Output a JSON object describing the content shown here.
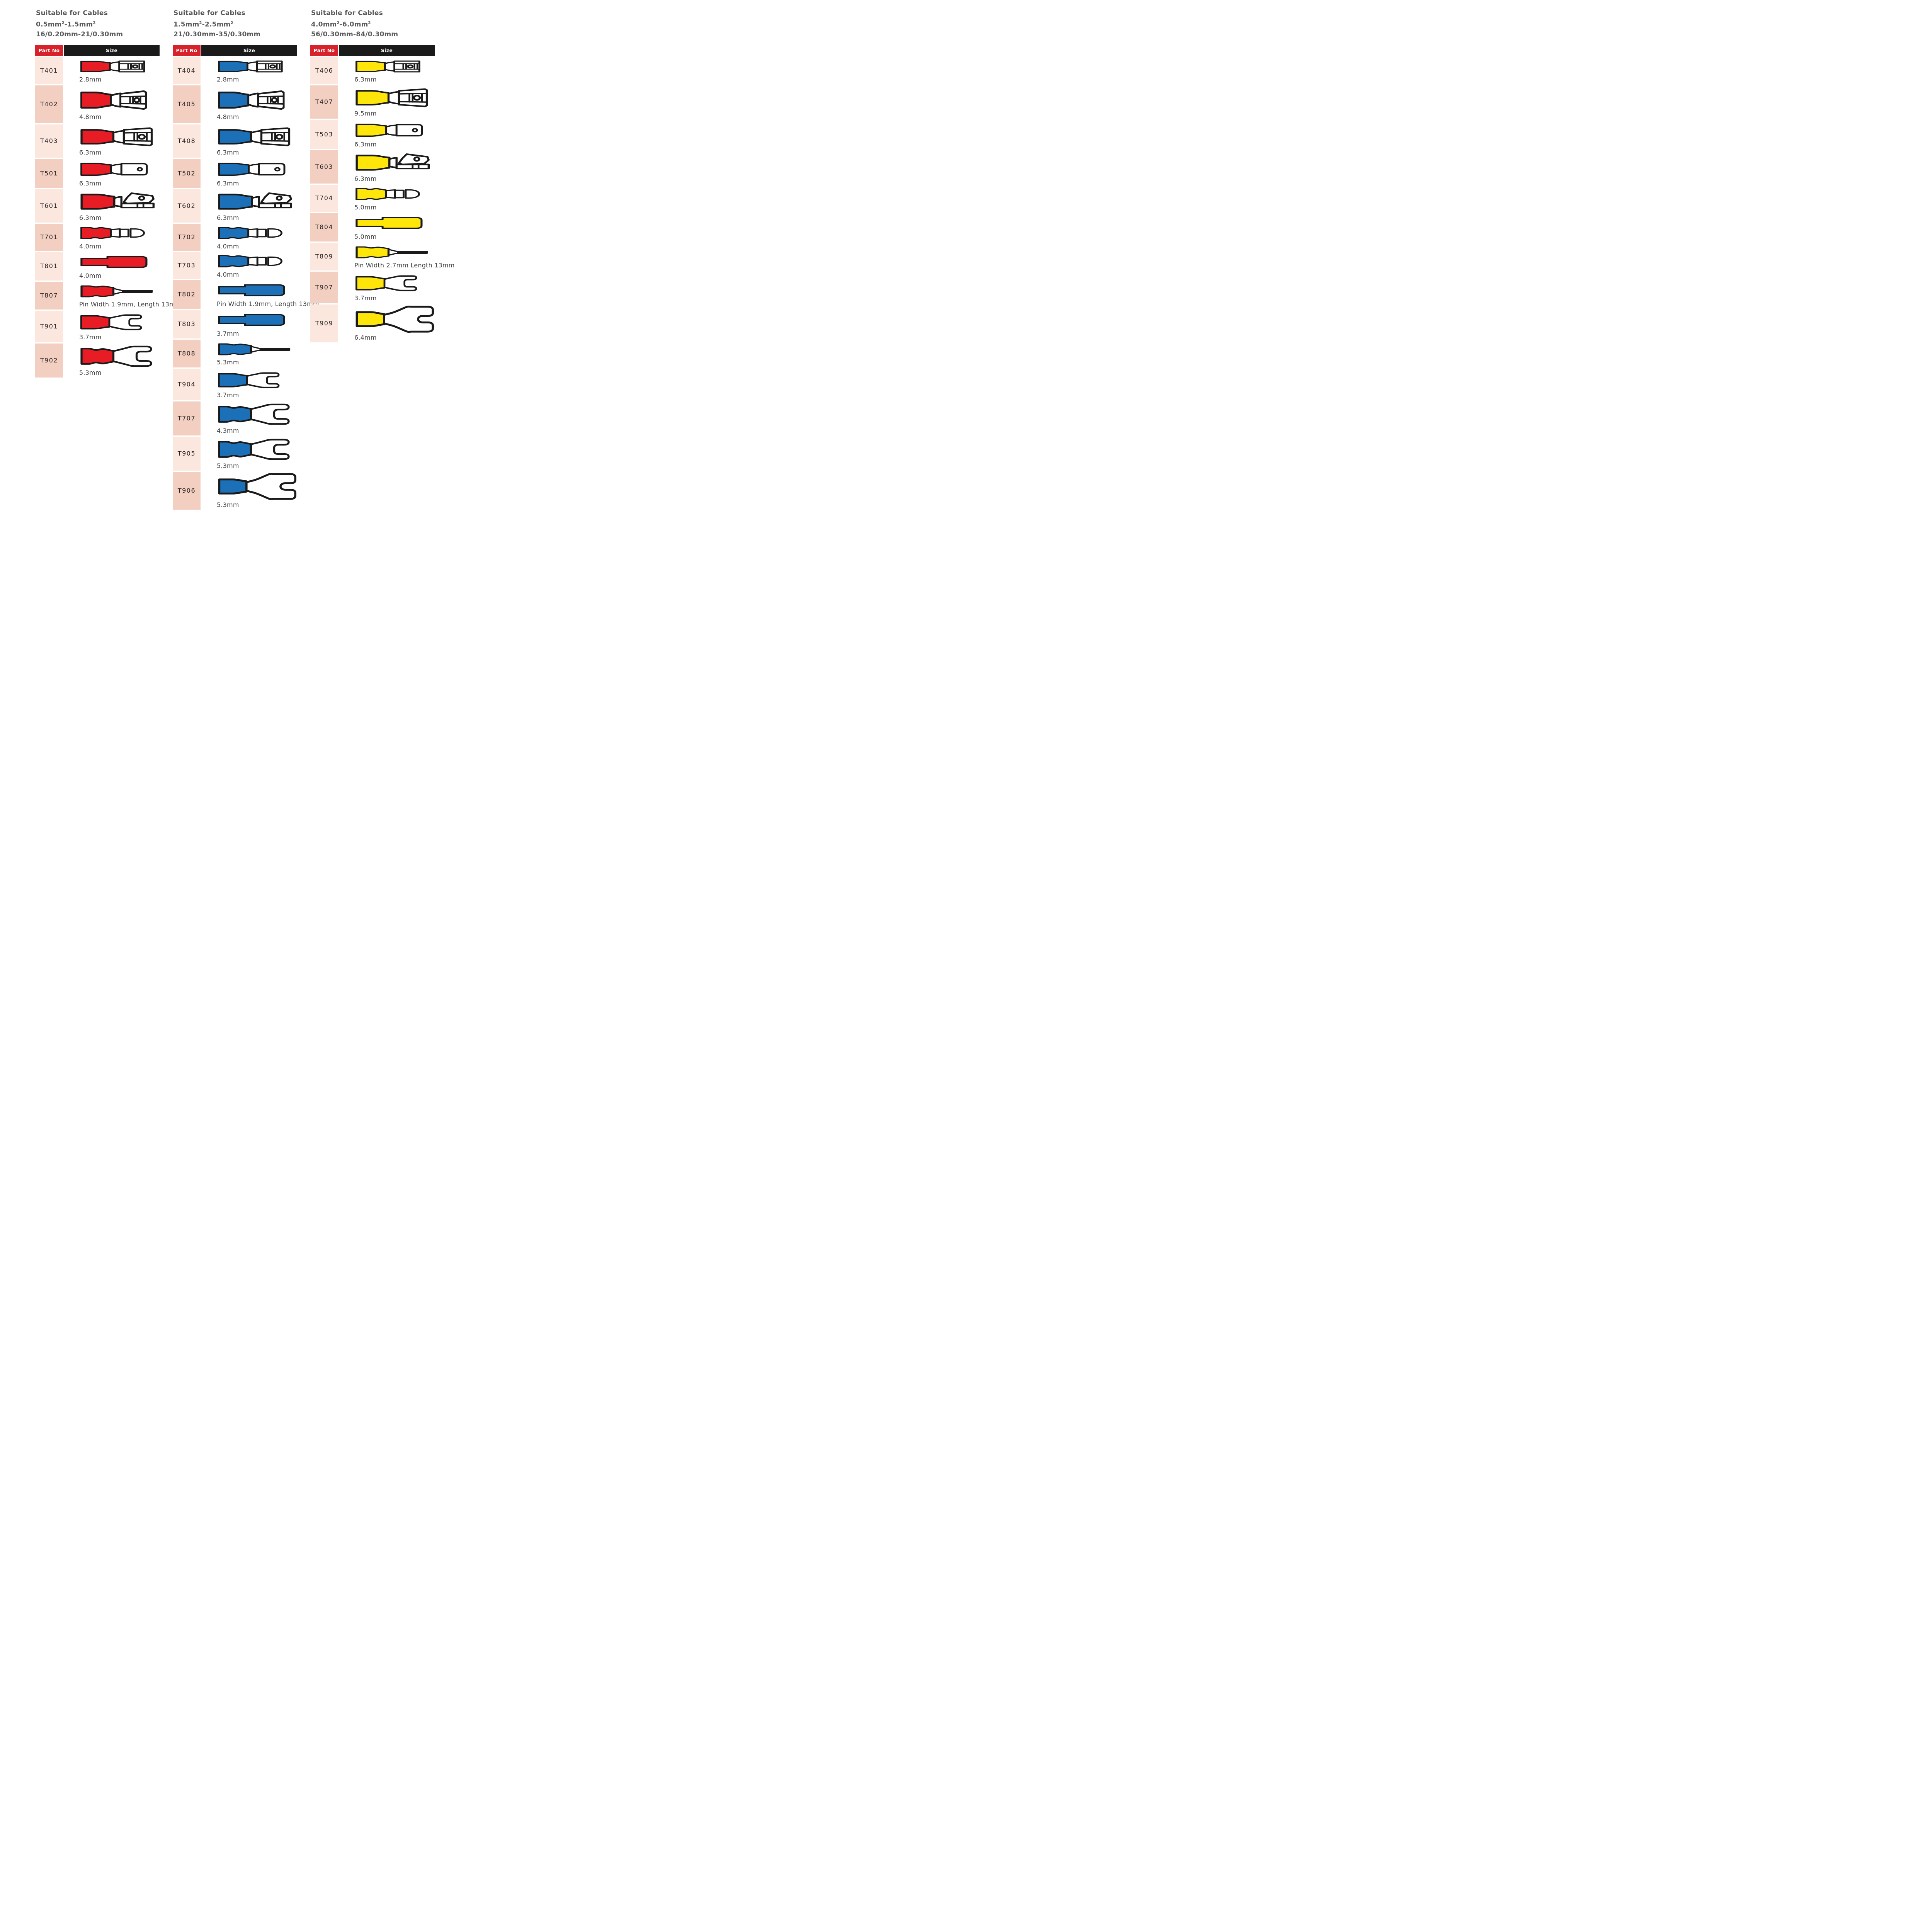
{
  "colors": {
    "terminal_red": "#e81c25",
    "terminal_blue": "#1b70b8",
    "terminal_yellow": "#ffe60a",
    "header_red": "#d7222b",
    "header_black": "#1a1a1a",
    "row_light": "#fbe7de",
    "row_dark": "#f2cfc0",
    "title_text": "#58585a",
    "caption_text": "#414042",
    "part_text": "#231f20"
  },
  "tables": [
    {
      "title_lines": [
        "Suitable for Cables",
        "0.5mm²-1.5mm²",
        "16/0.20mm-21/0.30mm"
      ],
      "columns": {
        "part": "Part No",
        "size": "Size"
      },
      "rows": [
        {
          "part": "T401",
          "size": "2.8mm",
          "shape": "female_small",
          "color": "red"
        },
        {
          "part": "T402",
          "size": "4.8mm",
          "shape": "female_medium",
          "color": "red"
        },
        {
          "part": "T403",
          "size": "6.3mm",
          "shape": "female_large",
          "color": "red"
        },
        {
          "part": "T501",
          "size": "6.3mm",
          "shape": "male",
          "color": "red"
        },
        {
          "part": "T601",
          "size": "6.3mm",
          "shape": "piggyback",
          "color": "red"
        },
        {
          "part": "T701",
          "size": "4.0mm",
          "shape": "bullet",
          "color": "red"
        },
        {
          "part": "T801",
          "size": "4.0mm",
          "shape": "butt",
          "color": "red"
        },
        {
          "part": "T807",
          "size": "Pin Width 1.9mm, Length 13mm",
          "shape": "pin",
          "color": "red"
        },
        {
          "part": "T901",
          "size": "3.7mm",
          "shape": "fork_small",
          "color": "red"
        },
        {
          "part": "T902",
          "size": "5.3mm",
          "shape": "fork_large",
          "color": "red"
        }
      ]
    },
    {
      "title_lines": [
        "Suitable for Cables",
        "1.5mm²-2.5mm²",
        "21/0.30mm-35/0.30mm"
      ],
      "columns": {
        "part": "Part No",
        "size": "Size"
      },
      "rows": [
        {
          "part": "T404",
          "size": "2.8mm",
          "shape": "female_small",
          "color": "blue"
        },
        {
          "part": "T405",
          "size": "4.8mm",
          "shape": "female_medium",
          "color": "blue"
        },
        {
          "part": "T408",
          "size": "6.3mm",
          "shape": "female_large",
          "color": "blue"
        },
        {
          "part": "T502",
          "size": "6.3mm",
          "shape": "male",
          "color": "blue"
        },
        {
          "part": "T602",
          "size": "6.3mm",
          "shape": "piggyback",
          "color": "blue"
        },
        {
          "part": "T702",
          "size": "4.0mm",
          "shape": "bullet",
          "color": "blue"
        },
        {
          "part": "T703",
          "size": "4.0mm",
          "shape": "bullet",
          "color": "blue"
        },
        {
          "part": "T802",
          "size": "Pin Width 1.9mm, Length 13mm",
          "shape": "butt",
          "color": "blue"
        },
        {
          "part": "T803",
          "size": "3.7mm",
          "shape": "butt",
          "color": "blue"
        },
        {
          "part": "T808",
          "size": "5.3mm",
          "shape": "pin",
          "color": "blue"
        },
        {
          "part": "T904",
          "size": "3.7mm",
          "shape": "fork_small",
          "color": "blue"
        },
        {
          "part": "T707",
          "size": "4.3mm",
          "shape": "fork_large",
          "color": "blue"
        },
        {
          "part": "T905",
          "size": "5.3mm",
          "shape": "fork_large",
          "color": "blue"
        },
        {
          "part": "T906",
          "size": "5.3mm",
          "shape": "fork_xlarge",
          "color": "blue"
        }
      ]
    },
    {
      "title_lines": [
        "Suitable for Cables",
        "4.0mm²-6.0mm²",
        "56/0.30mm-84/0.30mm"
      ],
      "columns": {
        "part": "Part No",
        "size": "Size"
      },
      "rows": [
        {
          "part": "T406",
          "size": "6.3mm",
          "shape": "female_small",
          "color": "yellow"
        },
        {
          "part": "T407",
          "size": "9.5mm",
          "shape": "female_large",
          "color": "yellow"
        },
        {
          "part": "T503",
          "size": "6.3mm",
          "shape": "male",
          "color": "yellow"
        },
        {
          "part": "T603",
          "size": "6.3mm",
          "shape": "piggyback",
          "color": "yellow"
        },
        {
          "part": "T704",
          "size": "5.0mm",
          "shape": "bullet",
          "color": "yellow"
        },
        {
          "part": "T804",
          "size": "5.0mm",
          "shape": "butt",
          "color": "yellow"
        },
        {
          "part": "T809",
          "size": "Pin Width 2.7mm Length 13mm",
          "shape": "pin",
          "color": "yellow"
        },
        {
          "part": "T907",
          "size": "3.7mm",
          "shape": "fork_small",
          "color": "yellow"
        },
        {
          "part": "T909",
          "size": "6.4mm",
          "shape": "fork_xlarge",
          "color": "yellow"
        }
      ]
    }
  ]
}
